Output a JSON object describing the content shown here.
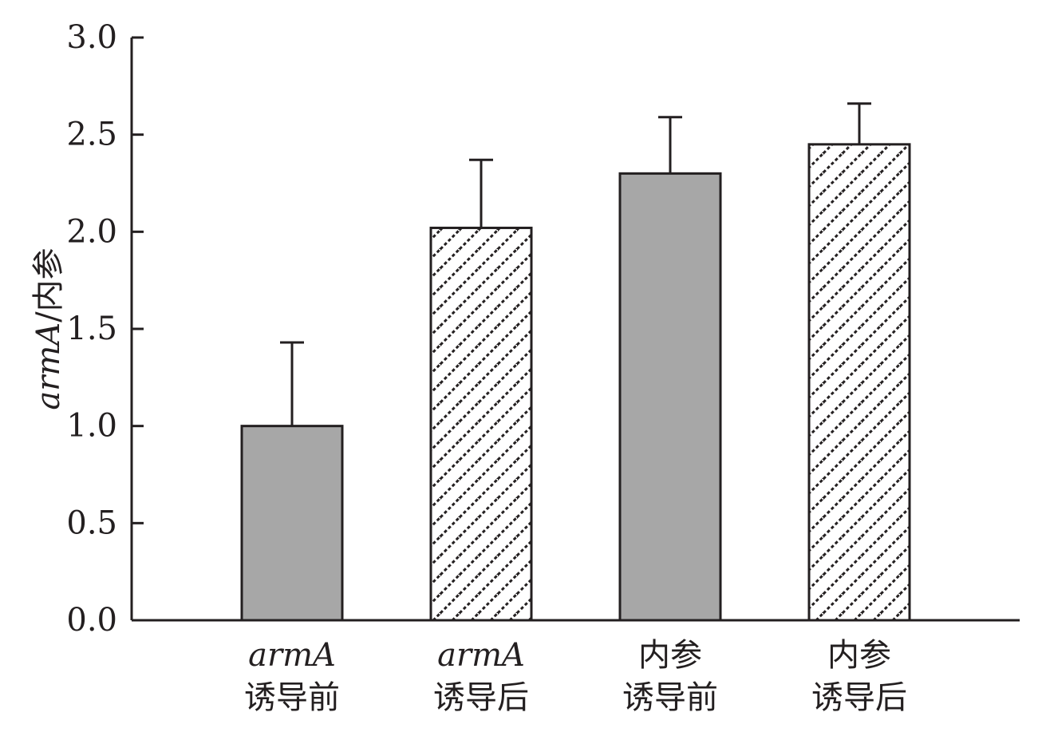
{
  "chart_data": {
    "type": "bar",
    "categories": [
      {
        "line1": "armA",
        "line1_italic": true,
        "line2": "诱导前"
      },
      {
        "line1": "armA",
        "line1_italic": true,
        "line2": "诱导后"
      },
      {
        "line1": "内参",
        "line1_italic": false,
        "line2": "诱导前"
      },
      {
        "line1": "内参",
        "line1_italic": false,
        "line2": "诱导后"
      }
    ],
    "values": [
      1.0,
      2.02,
      2.3,
      2.45
    ],
    "error_upper": [
      1.43,
      2.37,
      2.59,
      2.66
    ],
    "fills": [
      "solid",
      "hatched",
      "solid",
      "hatched"
    ],
    "ylabel": {
      "italic_part": "armA",
      "rest": "/内参"
    },
    "ylim": [
      0,
      3.0
    ],
    "yticks": [
      "0.0",
      "0.5",
      "1.0",
      "1.5",
      "2.0",
      "2.5",
      "3.0"
    ],
    "colors": {
      "solid": "#a7a7a7",
      "hatch": "#231f20",
      "axis": "#231f20",
      "background": "#ffffff"
    },
    "grid": false,
    "legend": "none"
  }
}
